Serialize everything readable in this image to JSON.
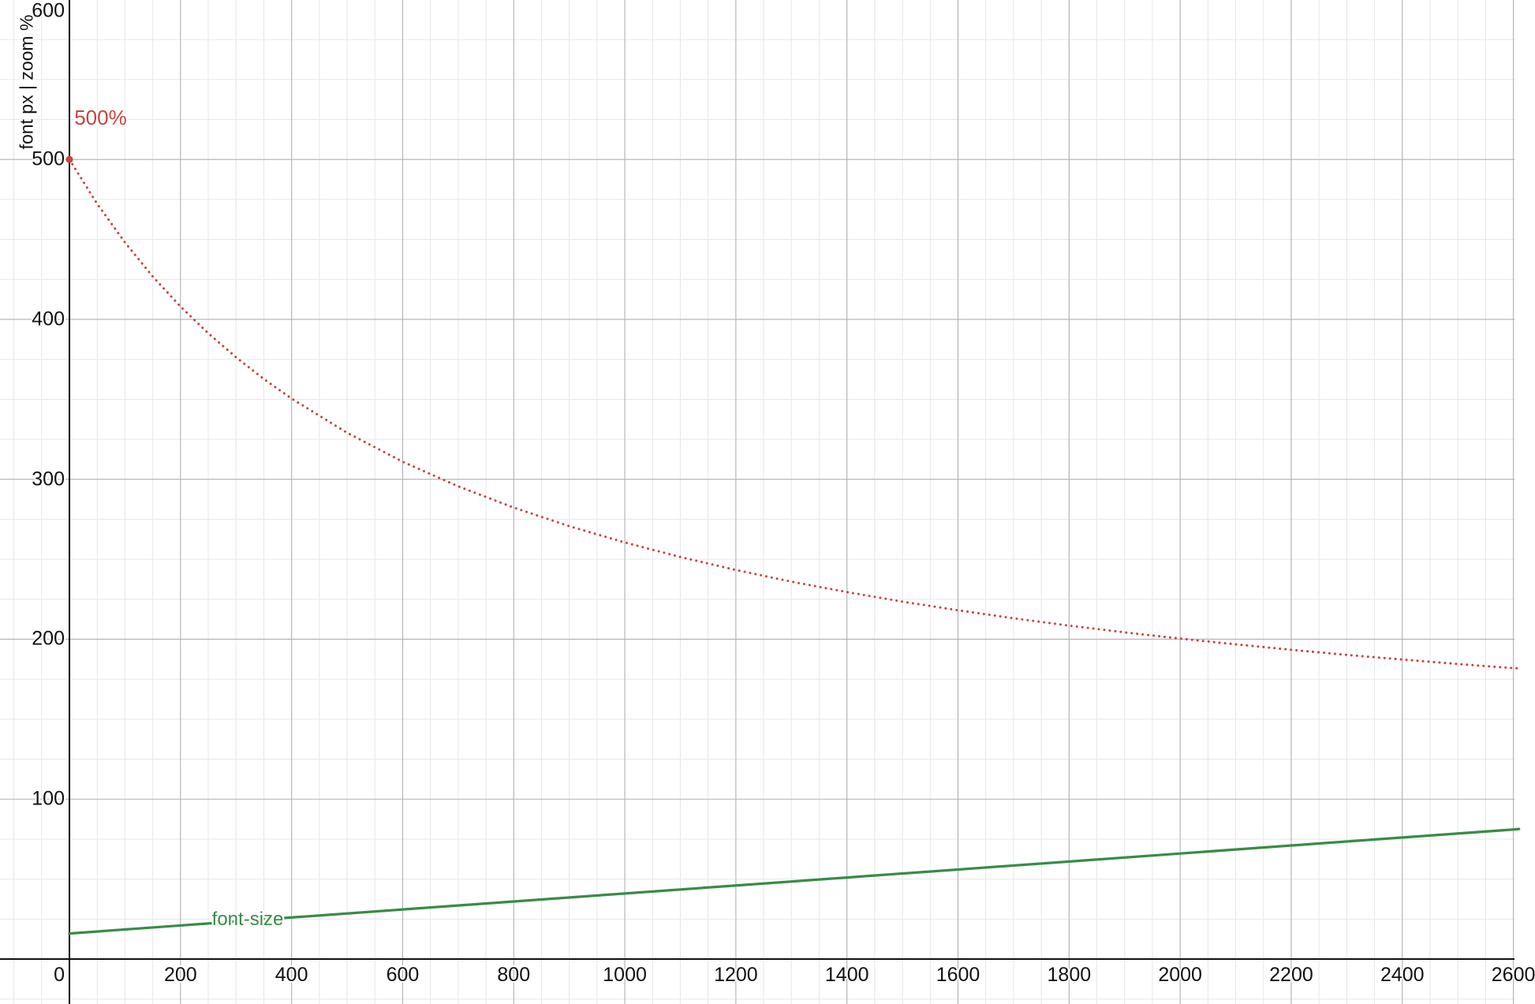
{
  "chart_data": {
    "type": "line",
    "title": "",
    "xlabel": "",
    "ylabel": "font px | zoom %",
    "grid": true,
    "legend": "none",
    "axes": {
      "x_range": [
        -125.0,
        2602.0
      ],
      "y_range": [
        -28.1,
        599.7
      ],
      "x_major_step": 200,
      "x_minor_step": 50,
      "y_major_step": 100,
      "y_minor_step": 25,
      "x_ticks": [
        0,
        200,
        400,
        600,
        800,
        1000,
        1200,
        1400,
        1600,
        1800,
        2000,
        2200,
        2400,
        2600
      ],
      "y_ticks": [
        100,
        200,
        300,
        400,
        500,
        600
      ]
    },
    "series": [
      {
        "name": "zoom %",
        "style": "dotted",
        "color": "#c74440",
        "width": 3,
        "points": [
          [
            0,
            500.0
          ],
          [
            50,
            472.2
          ],
          [
            100,
            448.1
          ],
          [
            150,
            426.8
          ],
          [
            200,
            408.0
          ],
          [
            250,
            391.3
          ],
          [
            300,
            376.3
          ],
          [
            350,
            362.7
          ],
          [
            400,
            350.5
          ],
          [
            500,
            329.1
          ],
          [
            600,
            311.0
          ],
          [
            700,
            295.6
          ],
          [
            800,
            282.3
          ],
          [
            900,
            270.7
          ],
          [
            1000,
            260.5
          ],
          [
            1100,
            251.4
          ],
          [
            1200,
            243.3
          ],
          [
            1300,
            236.0
          ],
          [
            1400,
            229.5
          ],
          [
            1500,
            223.5
          ],
          [
            1600,
            218.1
          ],
          [
            1700,
            213.1
          ],
          [
            1800,
            208.5
          ],
          [
            1900,
            204.3
          ],
          [
            2000,
            200.4
          ],
          [
            2100,
            196.8
          ],
          [
            2200,
            193.4
          ],
          [
            2300,
            190.2
          ],
          [
            2400,
            187.3
          ],
          [
            2500,
            184.5
          ],
          [
            2600,
            181.9
          ],
          [
            2610,
            181.8
          ]
        ]
      },
      {
        "name": "font-size",
        "style": "solid",
        "color": "#388c46",
        "width": 3.25,
        "points": [
          [
            0,
            16
          ],
          [
            200,
            21
          ],
          [
            400,
            26
          ],
          [
            600,
            31
          ],
          [
            800,
            36
          ],
          [
            1000,
            41
          ],
          [
            1200,
            46
          ],
          [
            1400,
            51
          ],
          [
            1600,
            56
          ],
          [
            1800,
            61
          ],
          [
            2000,
            66
          ],
          [
            2200,
            71
          ],
          [
            2400,
            76
          ],
          [
            2600,
            81
          ],
          [
            2610,
            81.3
          ]
        ]
      }
    ],
    "marker": {
      "x": 0,
      "y": 500,
      "radius": 4.5,
      "color": "#c74440"
    },
    "annotations": {
      "zoom_start": {
        "text": "500%",
        "x": 56,
        "y": 526,
        "color": "#c74440"
      },
      "font_size": {
        "text": "font-size",
        "x": 321,
        "y": 24.5,
        "color": "#388c46"
      }
    },
    "style": {
      "axis_color": "#111111",
      "major_grid_color": "#b0b0b0",
      "minor_grid_color": "#e7e7e7",
      "tick_label_color": "#111111",
      "background": "#ffffff"
    }
  }
}
